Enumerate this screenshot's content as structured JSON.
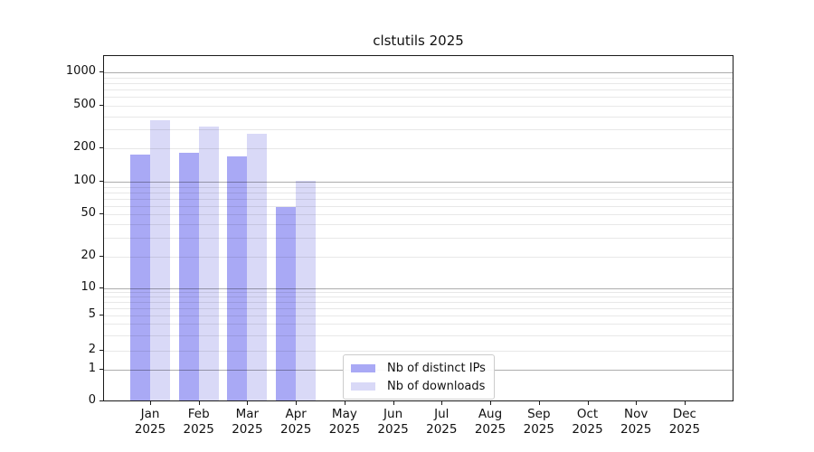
{
  "chart_data": {
    "type": "bar",
    "title": "clstutils 2025",
    "categories": [
      "Jan",
      "Feb",
      "Mar",
      "Apr",
      "May",
      "Jun",
      "Jul",
      "Aug",
      "Sep",
      "Oct",
      "Nov",
      "Dec"
    ],
    "category_year": "2025",
    "series": [
      {
        "name": "Nb of distinct IPs",
        "color": "#a9a9f5",
        "values": [
          174,
          181,
          166,
          57,
          null,
          null,
          null,
          null,
          null,
          null,
          null,
          null
        ]
      },
      {
        "name": "Nb of downloads",
        "color": "#d9d9f7",
        "values": [
          358,
          313,
          270,
          100,
          null,
          null,
          null,
          null,
          null,
          null,
          null,
          null
        ]
      }
    ],
    "yscale": "symlog",
    "yticks": [
      0,
      1,
      2,
      5,
      10,
      20,
      50,
      100,
      200,
      500,
      1000
    ],
    "ylim": [
      0,
      1400
    ],
    "grid": {
      "axis": "y",
      "major_on": [
        1,
        10,
        100,
        1000
      ],
      "minor_multiples": [
        2,
        3,
        4,
        5,
        6,
        7,
        8,
        9
      ],
      "drawn_above_bars": true
    },
    "legend": {
      "location": "inside-bottom-center",
      "entries": [
        "Nb of distinct IPs",
        "Nb of downloads"
      ]
    }
  }
}
